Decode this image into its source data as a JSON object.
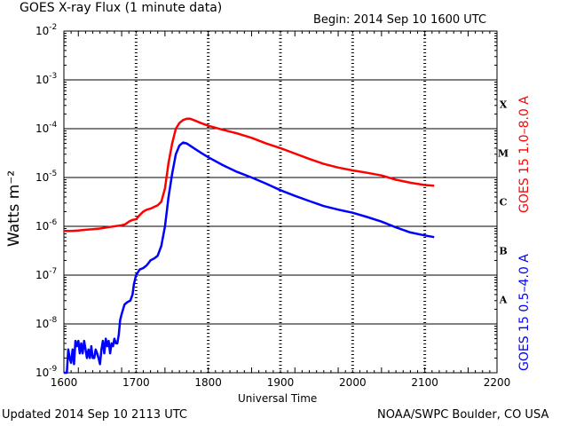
{
  "header": {
    "title": "GOES X-ray Flux (1 minute data)",
    "begin": "Begin: 2014 Sep 10 1600 UTC"
  },
  "footer": {
    "updated": "Updated 2014 Sep 10 2113 UTC",
    "credit": "NOAA/SWPC Boulder, CO USA"
  },
  "axes": {
    "ylabel": "Watts m⁻²",
    "xlabel": "Universal Time"
  },
  "colors": {
    "long": "#ff0000",
    "short": "#0000ff",
    "grid": "#000000"
  },
  "chart_data": {
    "type": "line",
    "title": "GOES X-ray Flux (1 minute data)",
    "xlabel": "Universal Time",
    "ylabel": "Watts m⁻²",
    "yscale": "log",
    "ylim": [
      1e-09,
      0.01
    ],
    "xlim": [
      1600,
      2200
    ],
    "xticks": [
      "1600",
      "1700",
      "1800",
      "1900",
      "2000",
      "2100",
      "2200"
    ],
    "yticks": [
      {
        "base": "10",
        "exp": "-9"
      },
      {
        "base": "10",
        "exp": "-8"
      },
      {
        "base": "10",
        "exp": "-7"
      },
      {
        "base": "10",
        "exp": "-6"
      },
      {
        "base": "10",
        "exp": "-5"
      },
      {
        "base": "10",
        "exp": "-4"
      },
      {
        "base": "10",
        "exp": "-3"
      },
      {
        "base": "10",
        "exp": "-2"
      }
    ],
    "flare_classes": [
      "A",
      "B",
      "C",
      "M",
      "X"
    ],
    "grid": true,
    "series": [
      {
        "name": "GOES 15 1.0–8.0 A",
        "color": "#ff0000",
        "points": [
          [
            1600,
            8e-07
          ],
          [
            1610,
            8e-07
          ],
          [
            1620,
            8.2e-07
          ],
          [
            1630,
            8.5e-07
          ],
          [
            1640,
            8.7e-07
          ],
          [
            1650,
            9e-07
          ],
          [
            1660,
            9.5e-07
          ],
          [
            1670,
            1e-06
          ],
          [
            1680,
            1.05e-06
          ],
          [
            1685,
            1.1e-06
          ],
          [
            1690,
            1.25e-06
          ],
          [
            1695,
            1.35e-06
          ],
          [
            1700,
            1.4e-06
          ],
          [
            1705,
            1.7e-06
          ],
          [
            1710,
            2e-06
          ],
          [
            1715,
            2.2e-06
          ],
          [
            1720,
            2.3e-06
          ],
          [
            1725,
            2.5e-06
          ],
          [
            1730,
            2.7e-06
          ],
          [
            1735,
            3.2e-06
          ],
          [
            1740,
            6e-06
          ],
          [
            1745,
            2e-05
          ],
          [
            1750,
            5e-05
          ],
          [
            1755,
            0.0001
          ],
          [
            1760,
            0.00013
          ],
          [
            1765,
            0.00015
          ],
          [
            1770,
            0.00016
          ],
          [
            1775,
            0.00016
          ],
          [
            1780,
            0.00015
          ],
          [
            1790,
            0.00013
          ],
          [
            1800,
            0.000115
          ],
          [
            1820,
            9.5e-05
          ],
          [
            1840,
            8e-05
          ],
          [
            1860,
            6.5e-05
          ],
          [
            1880,
            5e-05
          ],
          [
            1900,
            4e-05
          ],
          [
            1920,
            3.1e-05
          ],
          [
            1940,
            2.4e-05
          ],
          [
            1960,
            1.9e-05
          ],
          [
            1980,
            1.6e-05
          ],
          [
            2000,
            1.4e-05
          ],
          [
            2020,
            1.25e-05
          ],
          [
            2040,
            1.1e-05
          ],
          [
            2060,
            9e-06
          ],
          [
            2080,
            7.8e-06
          ],
          [
            2100,
            7e-06
          ],
          [
            2113,
            6.8e-06
          ]
        ]
      },
      {
        "name": "GOES 15 0.5–4.0 A",
        "color": "#0000ff",
        "points": [
          [
            1600,
            1e-09
          ],
          [
            1604,
            1e-09
          ],
          [
            1606,
            3e-09
          ],
          [
            1608,
            2e-09
          ],
          [
            1610,
            1.6e-09
          ],
          [
            1612,
            3e-09
          ],
          [
            1614,
            1.5e-09
          ],
          [
            1616,
            4.5e-09
          ],
          [
            1618,
            3.5e-09
          ],
          [
            1620,
            4.5e-09
          ],
          [
            1622,
            2.5e-09
          ],
          [
            1624,
            4e-09
          ],
          [
            1626,
            2.5e-09
          ],
          [
            1628,
            4.5e-09
          ],
          [
            1630,
            3e-09
          ],
          [
            1632,
            2e-09
          ],
          [
            1634,
            3e-09
          ],
          [
            1636,
            2e-09
          ],
          [
            1638,
            3.5e-09
          ],
          [
            1640,
            2e-09
          ],
          [
            1642,
            2e-09
          ],
          [
            1644,
            3e-09
          ],
          [
            1646,
            2.5e-09
          ],
          [
            1648,
            2e-09
          ],
          [
            1650,
            1.5e-09
          ],
          [
            1652,
            3e-09
          ],
          [
            1654,
            4.5e-09
          ],
          [
            1656,
            2.5e-09
          ],
          [
            1658,
            5e-09
          ],
          [
            1660,
            3.5e-09
          ],
          [
            1662,
            4.5e-09
          ],
          [
            1664,
            2.5e-09
          ],
          [
            1666,
            4e-09
          ],
          [
            1668,
            3.5e-09
          ],
          [
            1670,
            5e-09
          ],
          [
            1672,
            4e-09
          ],
          [
            1674,
            4e-09
          ],
          [
            1676,
            6e-09
          ],
          [
            1678,
            1.2e-08
          ],
          [
            1680,
            1.6e-08
          ],
          [
            1684,
            2.5e-08
          ],
          [
            1688,
            2.8e-08
          ],
          [
            1692,
            3e-08
          ],
          [
            1695,
            4e-08
          ],
          [
            1697,
            6.5e-08
          ],
          [
            1700,
            1e-07
          ],
          [
            1705,
            1.3e-07
          ],
          [
            1710,
            1.4e-07
          ],
          [
            1715,
            1.6e-07
          ],
          [
            1720,
            2e-07
          ],
          [
            1725,
            2.2e-07
          ],
          [
            1730,
            2.5e-07
          ],
          [
            1735,
            4e-07
          ],
          [
            1740,
            1e-06
          ],
          [
            1745,
            4e-06
          ],
          [
            1750,
            1.2e-05
          ],
          [
            1755,
            3e-05
          ],
          [
            1760,
            4.5e-05
          ],
          [
            1765,
            5.2e-05
          ],
          [
            1770,
            5e-05
          ],
          [
            1780,
            4e-05
          ],
          [
            1790,
            3.2e-05
          ],
          [
            1800,
            2.6e-05
          ],
          [
            1820,
            1.8e-05
          ],
          [
            1840,
            1.3e-05
          ],
          [
            1860,
            1e-05
          ],
          [
            1880,
            7.5e-06
          ],
          [
            1900,
            5.5e-06
          ],
          [
            1920,
            4.2e-06
          ],
          [
            1940,
            3.3e-06
          ],
          [
            1960,
            2.6e-06
          ],
          [
            1980,
            2.2e-06
          ],
          [
            2000,
            1.9e-06
          ],
          [
            2020,
            1.55e-06
          ],
          [
            2040,
            1.25e-06
          ],
          [
            2060,
            9.5e-07
          ],
          [
            2080,
            7.5e-07
          ],
          [
            2100,
            6.5e-07
          ],
          [
            2113,
            6e-07
          ]
        ]
      }
    ]
  }
}
